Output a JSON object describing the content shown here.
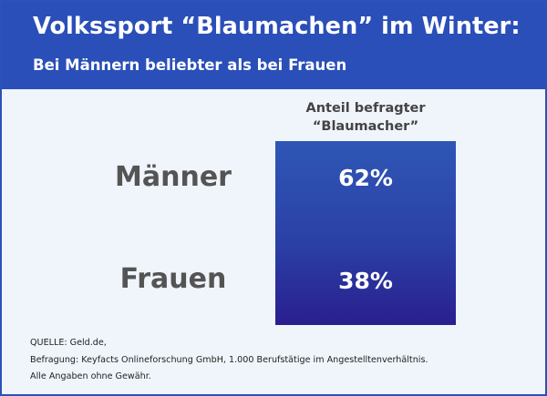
{
  "header": {
    "title": "Volkssport “Blaumachen” im Winter:",
    "subtitle": "Bei Männern beliebter als bei Frauen"
  },
  "footer": {
    "source": "QUELLE: Geld.de,",
    "survey": "Befragung: Keyfacts Onlineforschung GmbH, 1.000 Berufstätige im Angestelltenverhältnis.",
    "disclaimer": "Alle Angaben ohne Gewähr."
  },
  "chart_data": {
    "type": "table",
    "title": "Volkssport “Blaumachen” im Winter:",
    "subtitle": "Bei Männern beliebter als bei Frauen",
    "column_header": [
      "Anteil befragter",
      "“Blaumacher”"
    ],
    "categories": [
      "Männer",
      "Frauen"
    ],
    "values": [
      62,
      38
    ],
    "value_labels": [
      "62%",
      "38%"
    ],
    "unit": "%"
  },
  "colors": {
    "header_bg": "#2a4fb8",
    "box_top": "#2f57b5",
    "box_bottom": "#291f8e",
    "panel_bg": "#eff5fb",
    "label_text": "#545454"
  }
}
